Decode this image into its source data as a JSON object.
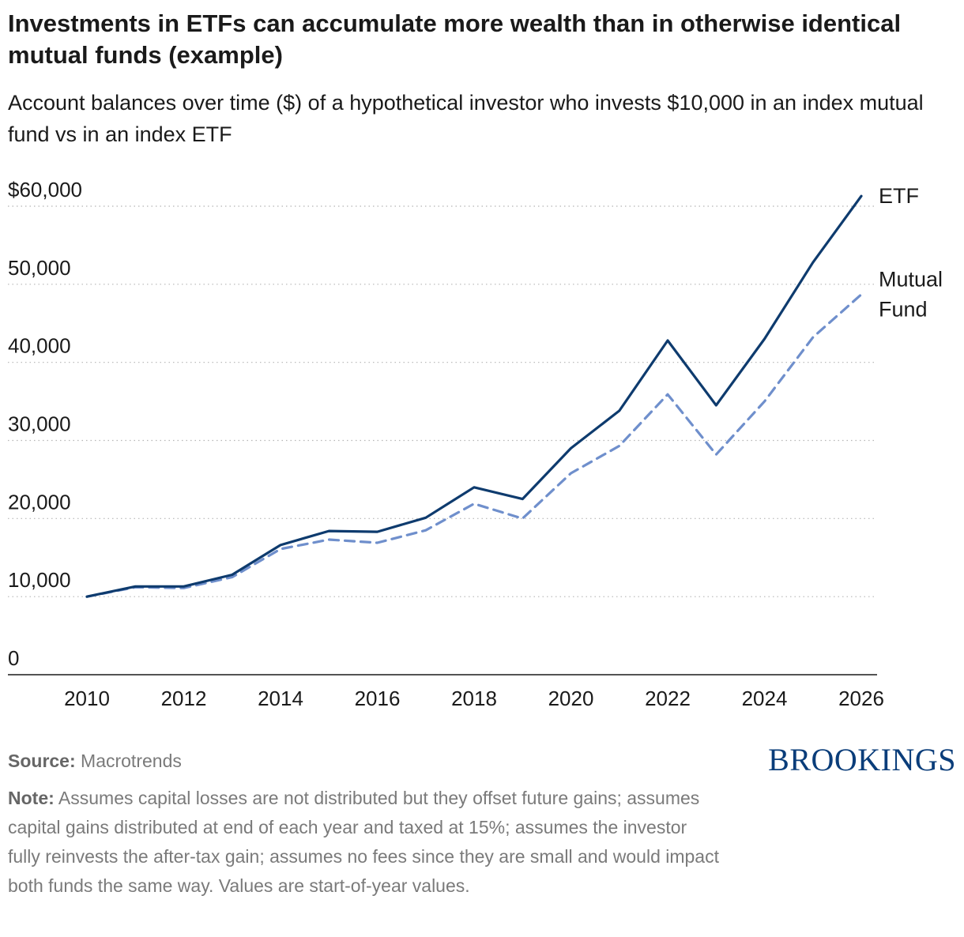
{
  "header": {
    "title": "Investments in ETFs can accumulate more wealth than in otherwise identical mutual funds (example)",
    "subtitle": "Account balances over time ($) of a hypothetical investor who invests $10,000 in an index mutual fund vs in an index ETF"
  },
  "footer": {
    "source_label": "Source:",
    "source_text": "Macrotrends",
    "note_label": "Note:",
    "note_text": "Assumes capital losses are not distributed but they offset future gains; assumes capital gains distributed at end of each year and taxed at 15%; assumes the investor fully reinvests the after-tax gain; assumes no fees since they are small and would impact both funds the same way. Values are start-of-year values.",
    "logo_text": "BROOKINGS"
  },
  "chart_data": {
    "type": "line",
    "x": [
      2010,
      2011,
      2012,
      2013,
      2014,
      2015,
      2016,
      2017,
      2018,
      2019,
      2020,
      2021,
      2022,
      2023,
      2024,
      2025,
      2026
    ],
    "xlim": [
      2010,
      2026
    ],
    "ylim": [
      0,
      60000
    ],
    "x_ticks": [
      "2010",
      "2012",
      "2014",
      "2016",
      "2018",
      "2020",
      "2022",
      "2024",
      "2026"
    ],
    "x_tick_values": [
      2010,
      2012,
      2014,
      2016,
      2018,
      2020,
      2022,
      2024,
      2026
    ],
    "y_ticks": [
      "0",
      "10,000",
      "20,000",
      "30,000",
      "40,000",
      "50,000",
      "$60,000"
    ],
    "y_tick_values": [
      0,
      10000,
      20000,
      30000,
      40000,
      50000,
      60000
    ],
    "grid": "horizontal dotted",
    "series": [
      {
        "name": "ETF",
        "label_lines": [
          "ETF"
        ],
        "color": "#0e3b6e",
        "style": "solid",
        "values": [
          10000,
          11300,
          11300,
          12800,
          16600,
          18400,
          18300,
          20100,
          24000,
          22500,
          29000,
          33800,
          42800,
          34500,
          43000,
          52800,
          61300
        ]
      },
      {
        "name": "Mutual Fund",
        "label_lines": [
          "Mutual",
          "Fund"
        ],
        "color": "#6f8fcc",
        "style": "dashed",
        "values": [
          10000,
          11200,
          11100,
          12500,
          16100,
          17300,
          16900,
          18500,
          21900,
          20000,
          25800,
          29300,
          35900,
          28200,
          35000,
          43200,
          48700
        ]
      }
    ]
  }
}
